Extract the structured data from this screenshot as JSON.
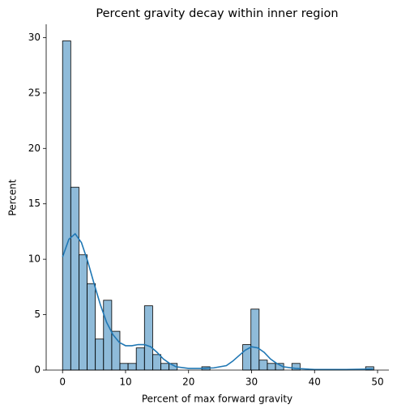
{
  "chart_data": {
    "type": "histogram",
    "title": "Percent gravity decay within inner region",
    "x_label": "Percent of max forward gravity",
    "y_label": "Percent",
    "bins": [
      0,
      1.3,
      2.6,
      3.9,
      5.2,
      6.5,
      7.8,
      9.1,
      10.4,
      11.7,
      13,
      14.3,
      15.6,
      16.9,
      18.2,
      19.5,
      20.8,
      22.1,
      23.4,
      24.7,
      26,
      27.3,
      28.6,
      29.9,
      31.2,
      32.5,
      33.8,
      35.1,
      36.4,
      37.7,
      39,
      40.3,
      41.6,
      42.9,
      44.2,
      45.5,
      46.8,
      48.1,
      49.4
    ],
    "values": [
      29.7,
      16.5,
      10.4,
      7.8,
      2.8,
      6.3,
      3.5,
      0.6,
      0.6,
      2.0,
      5.8,
      1.4,
      0.6,
      0.6,
      0,
      0,
      0,
      0.3,
      0,
      0,
      0,
      0,
      2.3,
      5.5,
      0.9,
      0.6,
      0.6,
      0,
      0.6,
      0,
      0,
      0,
      0,
      0,
      0,
      0,
      0,
      0.3
    ],
    "color": "#1f77b4",
    "kde": {
      "x": [
        0,
        1,
        2,
        3,
        4,
        5,
        6,
        7,
        8,
        9,
        10,
        11,
        12,
        13,
        14,
        15,
        16,
        17,
        18,
        20,
        22,
        24,
        26,
        27,
        28,
        29,
        30,
        31,
        32,
        33,
        34,
        35,
        37,
        40,
        45,
        49.3
      ],
      "values": [
        10.2,
        11.8,
        12.3,
        11.5,
        9.8,
        7.8,
        5.9,
        4.3,
        3.2,
        2.5,
        2.2,
        2.2,
        2.3,
        2.3,
        2.1,
        1.6,
        1.0,
        0.6,
        0.3,
        0.15,
        0.15,
        0.2,
        0.4,
        0.8,
        1.3,
        1.8,
        2.1,
        2.0,
        1.6,
        1.0,
        0.6,
        0.3,
        0.15,
        0.05,
        0.05,
        0.1
      ]
    },
    "xlim": [
      -2.6,
      51.8
    ],
    "ylim": [
      0,
      31.2
    ],
    "xticks": [
      0,
      10,
      20,
      30,
      40,
      50
    ],
    "yticks": [
      0,
      5,
      10,
      15,
      20,
      25,
      30
    ]
  }
}
